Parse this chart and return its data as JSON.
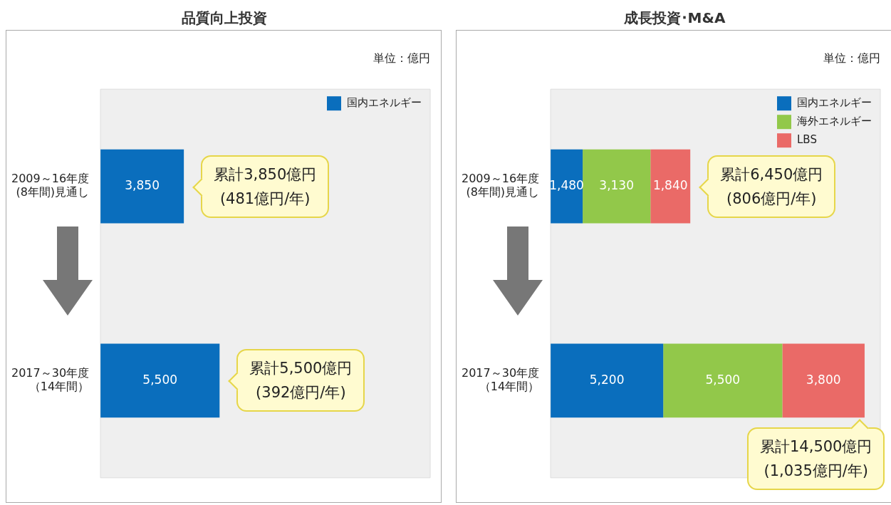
{
  "chart_data": [
    {
      "type": "bar",
      "orientation": "horizontal",
      "stacked": true,
      "title": "品質向上投資",
      "categories": [
        "2009～16年度(8年間)見通し",
        "2017～30年度（14年間）"
      ],
      "series": [
        {
          "name": "国内エネルギー",
          "color": "#0a6ebd",
          "values": [
            3850,
            5500
          ],
          "value_labels": [
            "3,850",
            "5,500"
          ]
        }
      ],
      "tick_labels": "y",
      "grid": false,
      "legend": "top right",
      "annotations": [
        "単位：億円",
        {
          "text": "累計3,850億円\n(481億円/年)",
          "x": 3850,
          "y": "2009～16年度(8年間)見通し"
        },
        {
          "text": "累計5,500億円\n(392億円/年)",
          "x": 5500,
          "y": "2017～30年度（14年間）"
        }
      ]
    },
    {
      "type": "bar",
      "orientation": "horizontal",
      "stacked": true,
      "title": "成長投資･M&A",
      "categories": [
        "2009～16年度(8年間)見通し",
        "2017～30年度（14年間）"
      ],
      "series": [
        {
          "name": "国内エネルギー",
          "color": "#0a6ebd",
          "values": [
            1480,
            5200
          ],
          "value_labels": [
            "1,480",
            "5,200"
          ]
        },
        {
          "name": "海外エネルギー",
          "color": "#92c84a",
          "values": [
            3130,
            5500
          ],
          "value_labels": [
            "3,130",
            "5,500"
          ]
        },
        {
          "name": "LBS",
          "color": "#ea6a67",
          "values": [
            1840,
            3800
          ],
          "value_labels": [
            "1,840",
            "3,800"
          ]
        }
      ],
      "tick_labels": "y",
      "grid": false,
      "legend": "top right",
      "annotations": [
        "単位：億円",
        {
          "text": "累計6,450億円\n(806億円/年)",
          "x": 6450,
          "y": "2009～16年度(8年間)見通し"
        },
        "累計14,500億円\n(1,035億円/年)"
      ]
    }
  ]
}
